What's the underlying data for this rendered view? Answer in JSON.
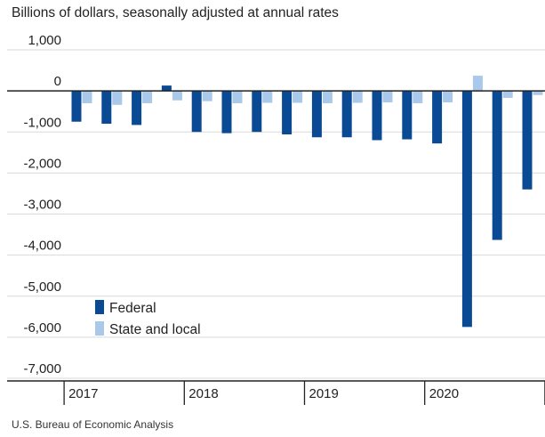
{
  "chart_data": {
    "type": "bar",
    "title": "Billions of dollars, seasonally adjusted at annual rates",
    "source": "U.S. Bureau of Economic Analysis",
    "xlabel": "",
    "ylabel": "",
    "ylim": [
      -7000,
      1000
    ],
    "yticks": [
      "1,000",
      "0",
      "-1,000",
      "-2,000",
      "-3,000",
      "-4,000",
      "-5,000",
      "-6,000",
      "-7,000"
    ],
    "ytick_values": [
      1000,
      0,
      -1000,
      -2000,
      -3000,
      -4000,
      -5000,
      -6000,
      -7000
    ],
    "grid": true,
    "legend_position": "bottom-left",
    "categories": [
      "2017 Q1",
      "2017 Q2",
      "2017 Q3",
      "2017 Q4",
      "2018 Q1",
      "2018 Q2",
      "2018 Q3",
      "2018 Q4",
      "2019 Q1",
      "2019 Q2",
      "2019 Q3",
      "2019 Q4",
      "2020 Q1",
      "2020 Q2",
      "2020 Q3",
      "2020 Q4"
    ],
    "year_labels": [
      "2017",
      "2018",
      "2019",
      "2020"
    ],
    "series": [
      {
        "name": "Federal",
        "color": "#0a4a94",
        "values": [
          -750,
          -800,
          -830,
          130,
          -1000,
          -1030,
          -1000,
          -1060,
          -1130,
          -1130,
          -1200,
          -1180,
          -1280,
          -5750,
          -3630,
          -2400
        ]
      },
      {
        "name": "State and local",
        "color": "#a9c8ea",
        "values": [
          -300,
          -340,
          -300,
          -230,
          -250,
          -300,
          -290,
          -290,
          -300,
          -290,
          -280,
          -300,
          -280,
          370,
          -170,
          -100
        ]
      }
    ]
  }
}
